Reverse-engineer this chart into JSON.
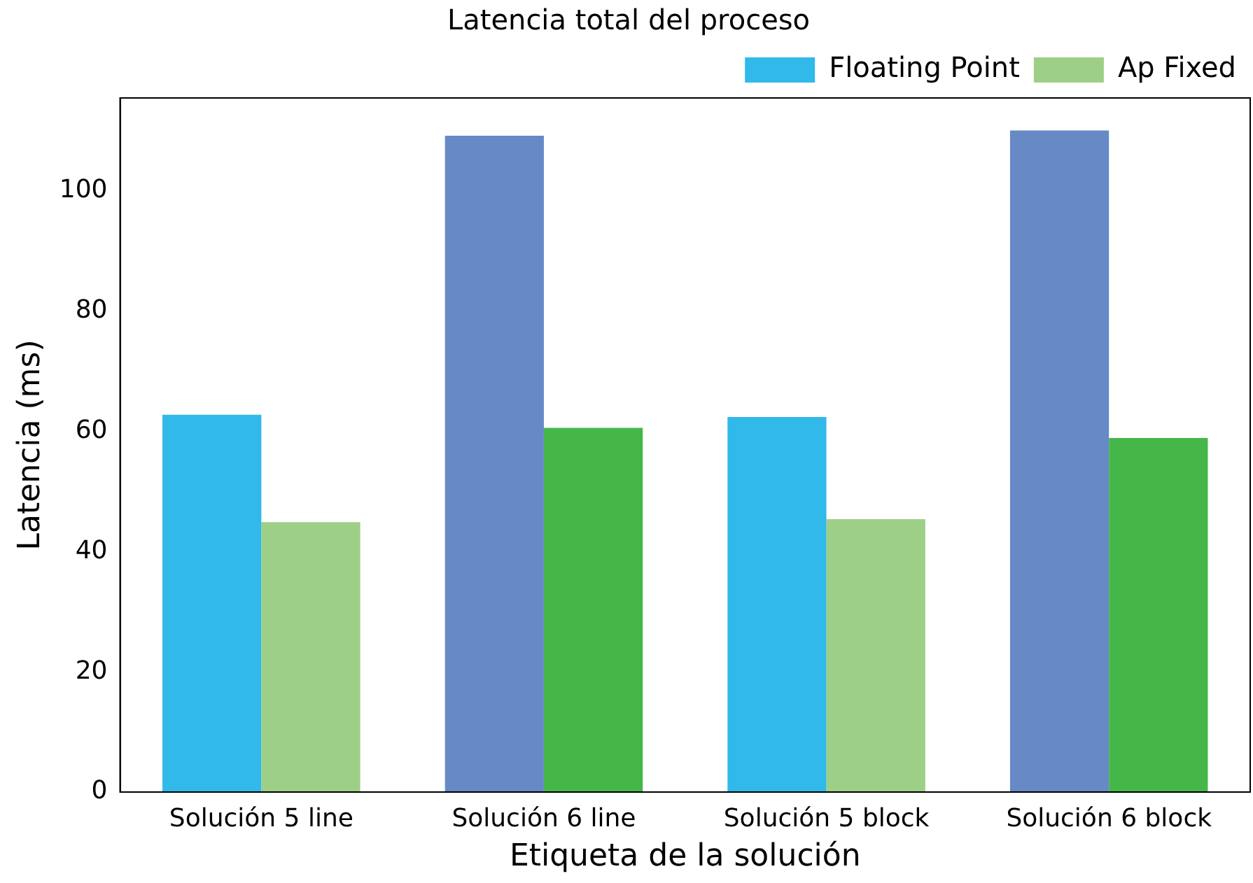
{
  "chart_data": {
    "type": "bar",
    "title": "Latencia total del proceso",
    "xlabel": "Etiqueta de la solución",
    "ylabel": "Latencia (ms)",
    "categories": [
      "Solución 5 line",
      "Solución 6 line",
      "Solución 5 block",
      "Solución 6 block"
    ],
    "series": [
      {
        "name": "Floating Point",
        "color": "#31b9e9",
        "colors": [
          "#31b9e9",
          "#6789c6",
          "#31b9e9",
          "#6789c6"
        ],
        "values": [
          62.8,
          109.2,
          62.4,
          110.1
        ]
      },
      {
        "name": "Ap Fixed",
        "color": "#9ecf86",
        "colors": [
          "#9ecf86",
          "#45b749",
          "#9ecf86",
          "#45b749"
        ],
        "values": [
          44.9,
          60.6,
          45.4,
          58.9
        ]
      }
    ],
    "ylim": [
      0,
      115.5
    ],
    "yticks": [
      0,
      20,
      40,
      60,
      80,
      100
    ],
    "grid": false,
    "legend": "top right"
  }
}
